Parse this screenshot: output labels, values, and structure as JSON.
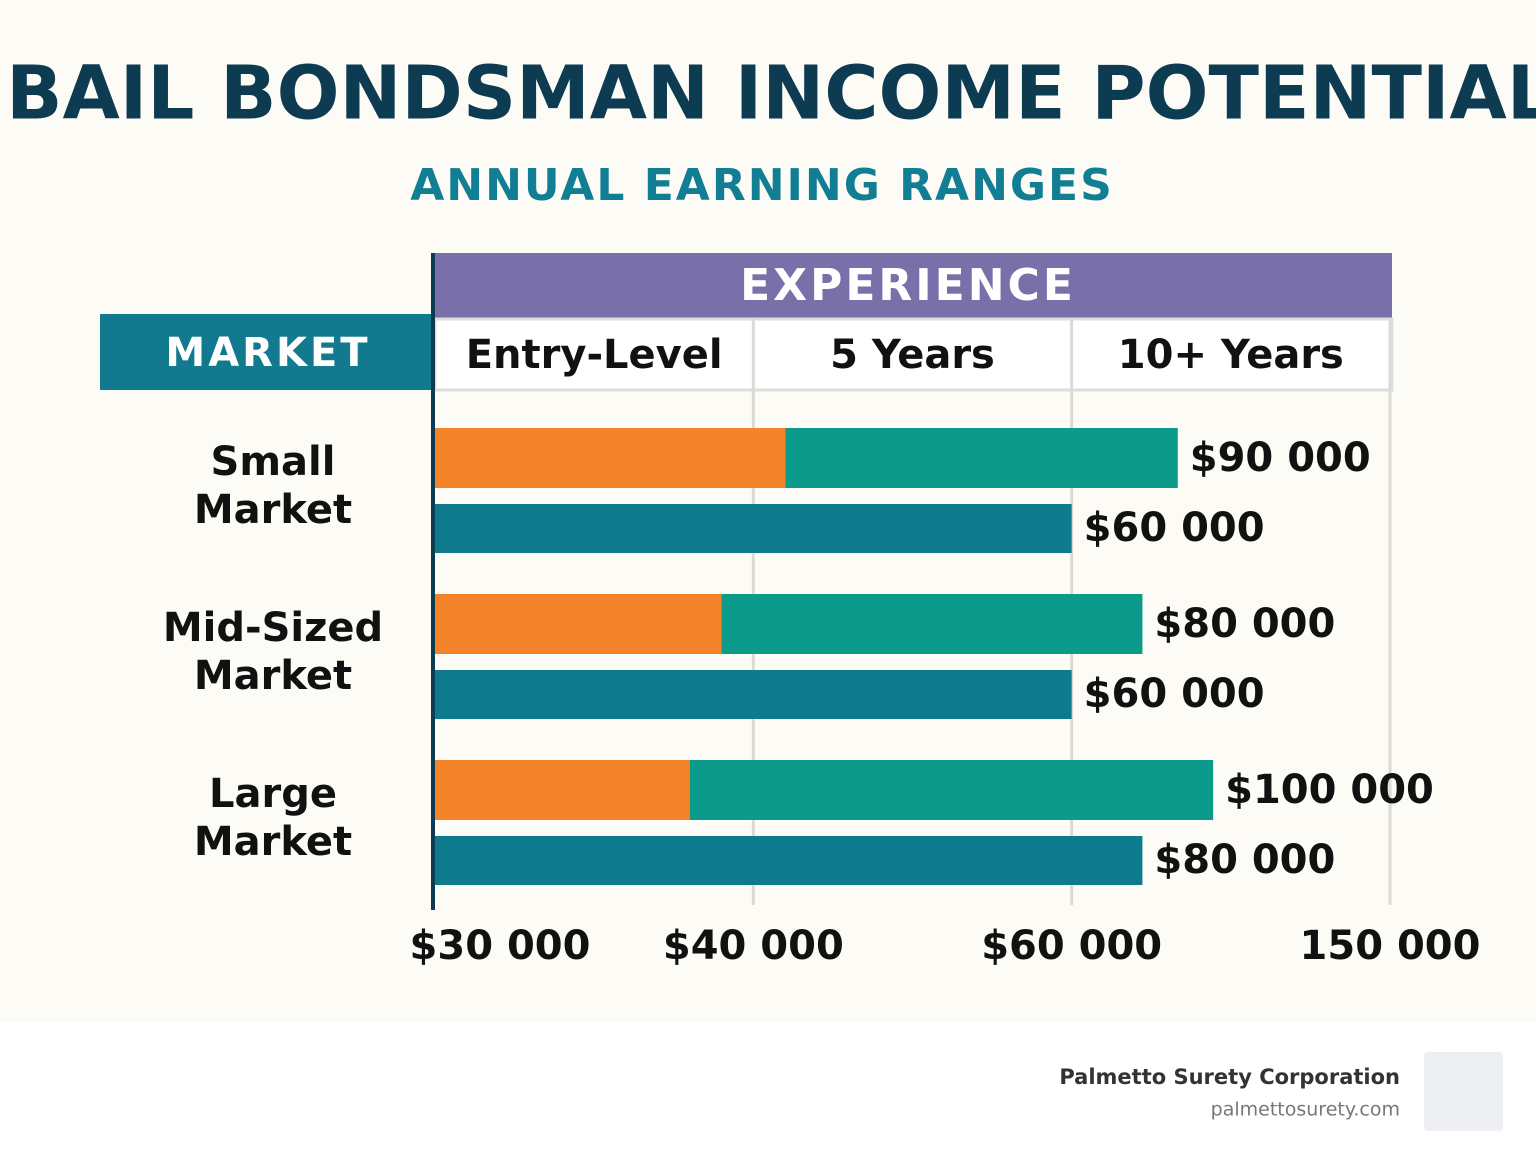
{
  "chart_data": {
    "type": "bar",
    "title": "BAIL BONDSMAN INCOME POTENTIAL",
    "subtitle": "ANNUAL EARNING RANGES",
    "column_header": "EXPERIENCE",
    "row_header": "MARKET",
    "columns": [
      "Entry-Level",
      "5 Years",
      "10+ Years"
    ],
    "categories": [
      "Small Market",
      "Mid-Sized Market",
      "Large Market"
    ],
    "series": [
      {
        "color": "#f5832a",
        "values": [
          42000,
          39000,
          38000
        ]
      },
      {
        "color": "#0c9a8a",
        "values": [
          90000,
          80000,
          100000
        ],
        "value_labels": [
          "$90 000",
          "$80 000",
          "$100 000"
        ]
      },
      {
        "color": "#0e7b8c",
        "values": [
          60000,
          60000,
          80000
        ],
        "value_labels": [
          "$60 000",
          "$60 000",
          "$80 000"
        ]
      }
    ],
    "xlim": [
      30000,
      150000
    ],
    "xticks": [
      {
        "value": 30000,
        "label": "$30 000"
      },
      {
        "value": 40000,
        "label": "$40 000"
      },
      {
        "value": 60000,
        "label": "$60 000"
      },
      {
        "value": 150000,
        "label": "150 000"
      }
    ],
    "grid": true
  },
  "footer": {
    "name": "Palmetto Surety Corporation",
    "url": "palmettosurety.com"
  }
}
